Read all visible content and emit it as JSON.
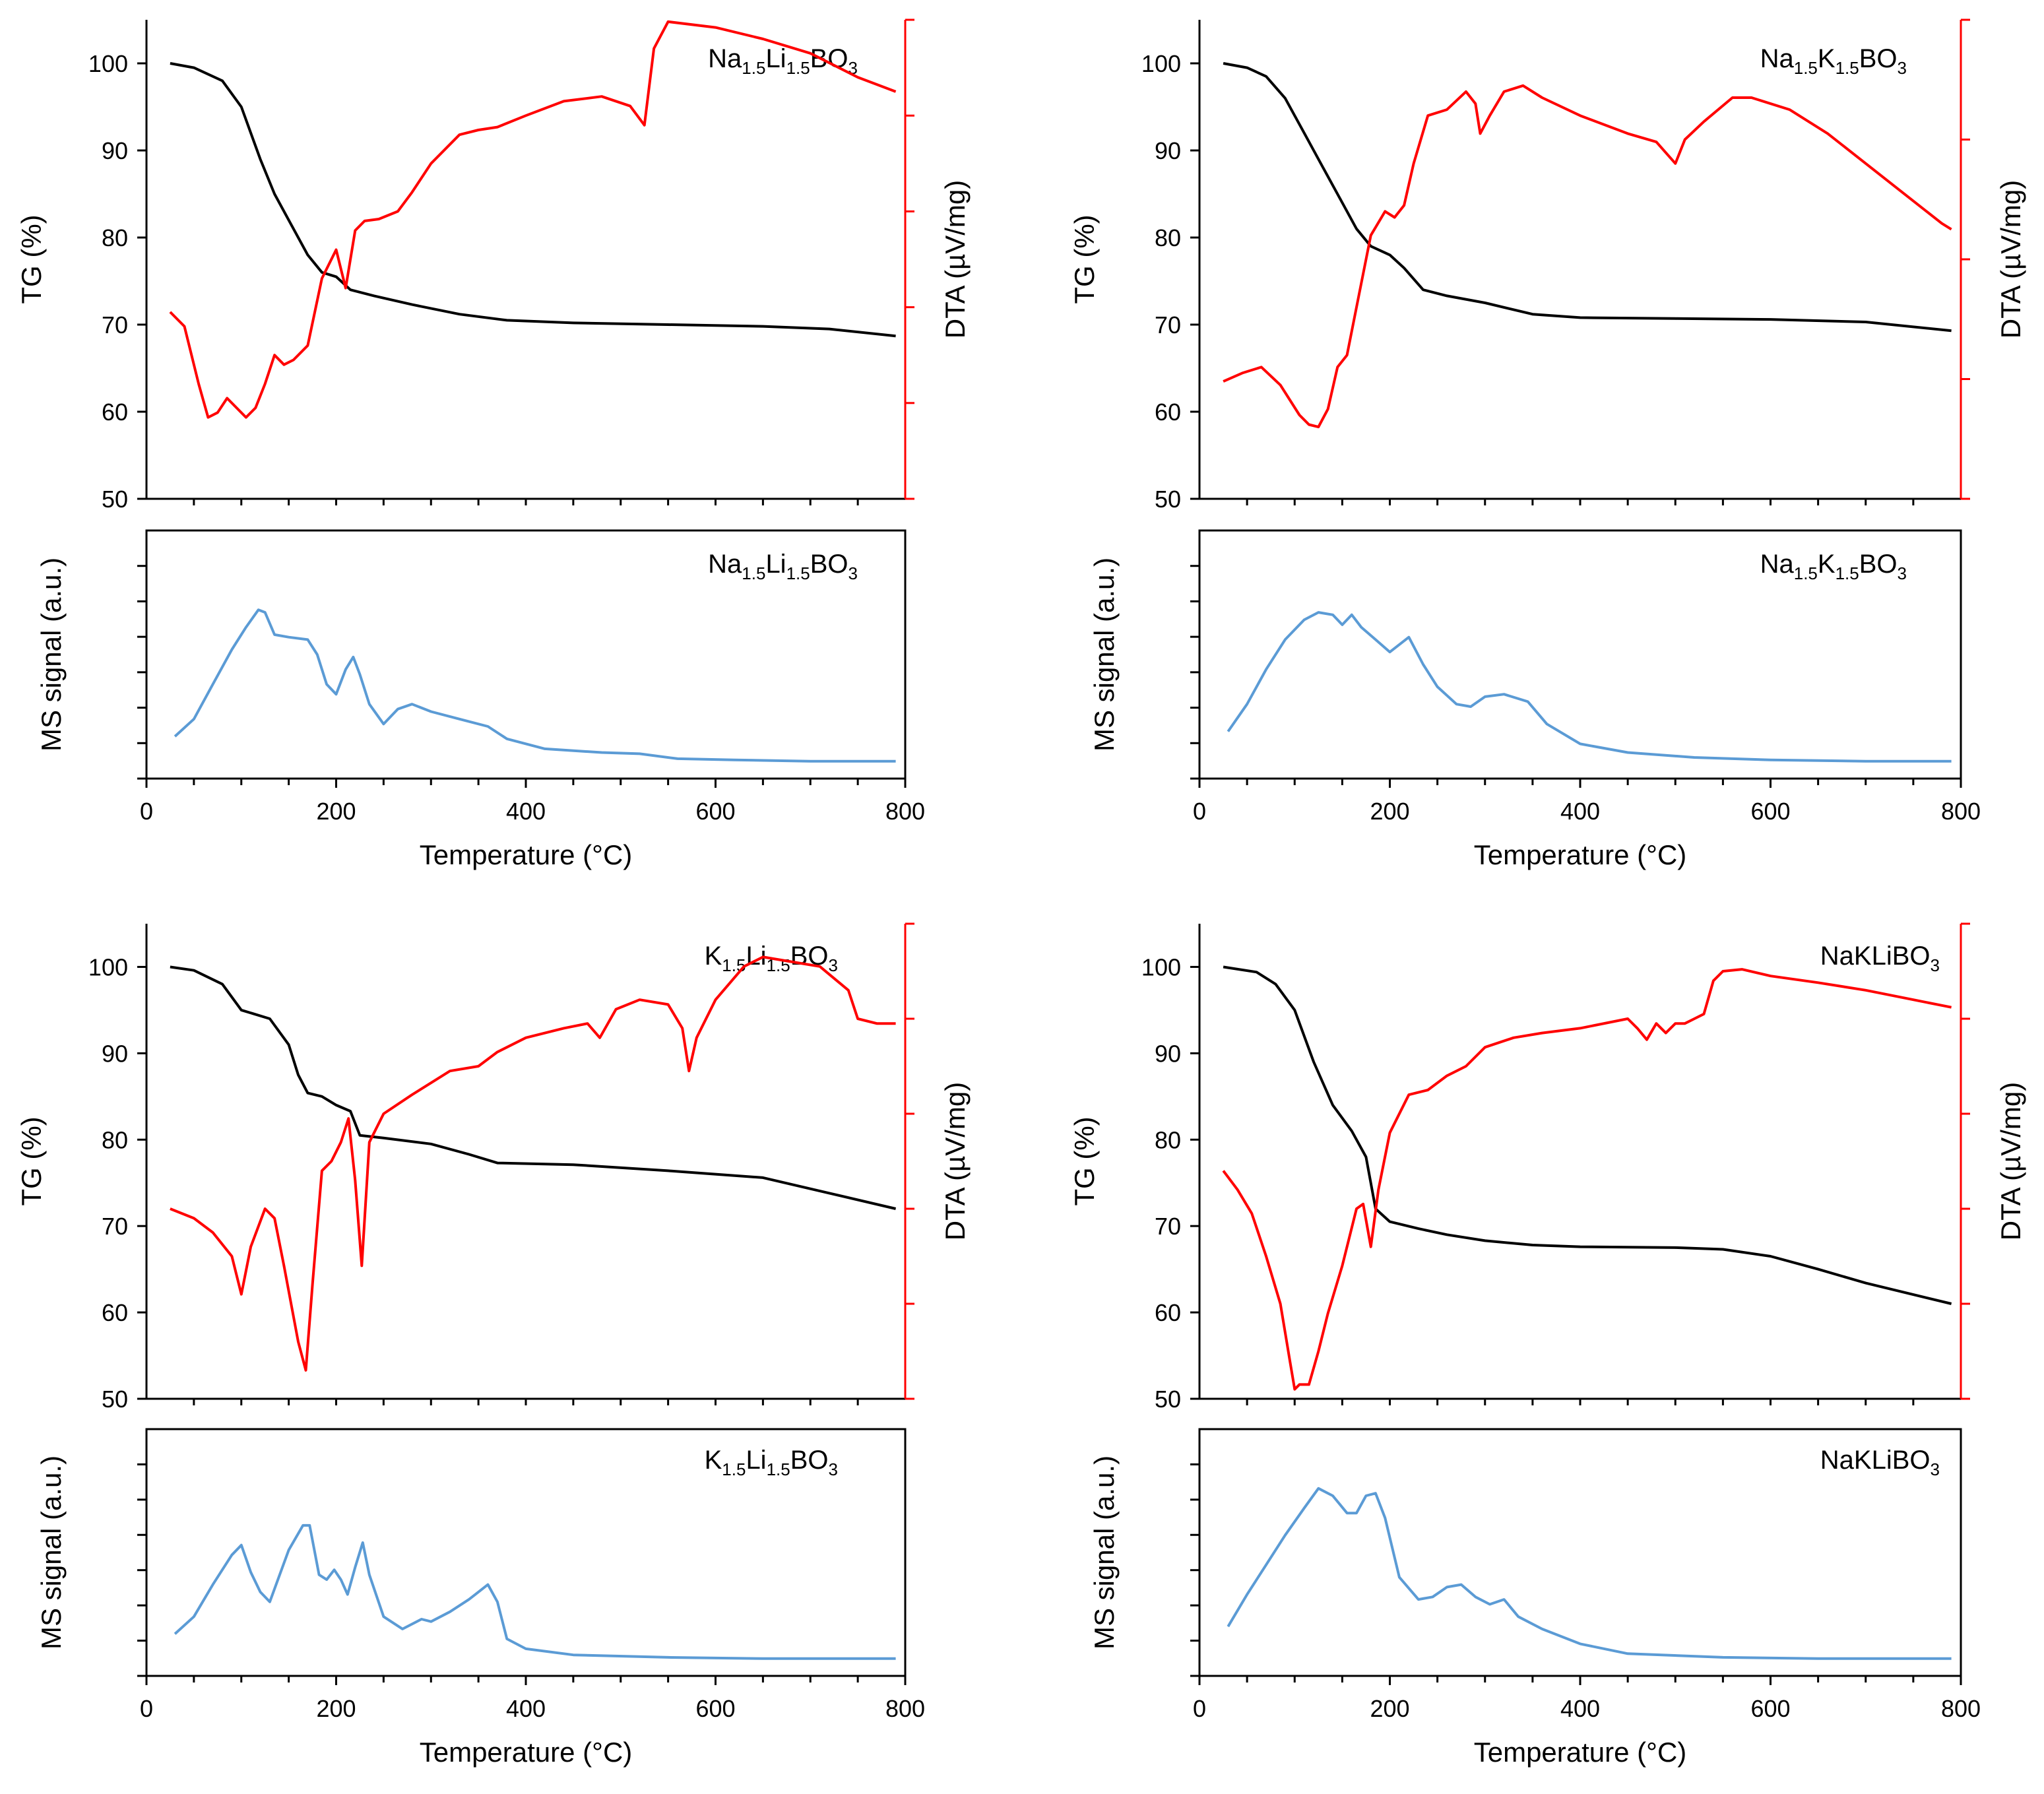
{
  "colors": {
    "tg": "#000000",
    "dta": "#ff0000",
    "ms": "#5b9bd5",
    "axis": "#000000",
    "dta_axis": "#ff0000"
  },
  "axis_labels": {
    "tg": "TG (%)",
    "dta": "DTA (µV/mg)",
    "ms": "MS signal (a.u.)",
    "x": "Temperature (°C)"
  },
  "chart_data": [
    {
      "type": "line",
      "sample": {
        "parts": [
          [
            "Na",
            ""
          ],
          [
            "1.5",
            "sub"
          ],
          [
            "Li",
            ""
          ],
          [
            "1.5",
            "sub"
          ],
          [
            "BO",
            ""
          ],
          [
            "3",
            "sub"
          ]
        ]
      },
      "xlim": [
        0,
        800
      ],
      "x_ticks": [
        "0",
        "200",
        "400",
        "600",
        "800"
      ],
      "tg": {
        "name": "TG",
        "ylabel": "TG (%)",
        "ylim": [
          50,
          105
        ],
        "y_ticks": [
          "50",
          "60",
          "70",
          "80",
          "90",
          "100"
        ],
        "x": [
          25,
          50,
          80,
          100,
          120,
          135,
          150,
          170,
          185,
          200,
          215,
          240,
          280,
          330,
          380,
          450,
          550,
          650,
          720,
          790
        ],
        "y": [
          100,
          99.5,
          98,
          95,
          89,
          85,
          82,
          78,
          76,
          75.5,
          74,
          73.3,
          72.3,
          71.2,
          70.5,
          70.2,
          70,
          69.8,
          69.5,
          68.7
        ]
      },
      "dta": {
        "name": "DTA",
        "ylabel": "DTA (µV/mg)",
        "ylim": [
          0,
          5
        ],
        "tick_count": 5,
        "x": [
          25,
          40,
          55,
          65,
          75,
          85,
          95,
          105,
          115,
          125,
          135,
          145,
          155,
          170,
          185,
          200,
          210,
          220,
          230,
          245,
          265,
          280,
          300,
          330,
          350,
          370,
          400,
          440,
          480,
          510,
          525,
          535,
          550,
          600,
          650,
          700,
          750,
          790
        ],
        "y": [
          1.95,
          1.8,
          1.2,
          0.85,
          0.9,
          1.05,
          0.95,
          0.85,
          0.95,
          1.2,
          1.5,
          1.4,
          1.45,
          1.6,
          2.3,
          2.6,
          2.2,
          2.8,
          2.9,
          2.92,
          3.0,
          3.2,
          3.5,
          3.8,
          3.85,
          3.88,
          4.0,
          4.15,
          4.2,
          4.1,
          3.9,
          4.7,
          4.98,
          4.92,
          4.8,
          4.65,
          4.4,
          4.25
        ]
      },
      "ms": {
        "name": "MS",
        "ylabel": "MS signal (a.u.)",
        "ylim": [
          0,
          100
        ],
        "tick_count": 6,
        "x": [
          30,
          50,
          70,
          90,
          105,
          118,
          125,
          135,
          150,
          170,
          180,
          190,
          200,
          210,
          218,
          225,
          235,
          250,
          265,
          280,
          300,
          330,
          360,
          380,
          420,
          480,
          520,
          560,
          620,
          700,
          790
        ],
        "y": [
          17,
          24,
          38,
          52,
          61,
          68,
          67,
          58,
          57,
          56,
          50,
          38,
          34,
          44,
          49,
          42,
          30,
          22,
          28,
          30,
          27,
          24,
          21,
          16,
          12,
          10.5,
          10,
          8,
          7.5,
          7,
          7
        ]
      }
    },
    {
      "type": "line",
      "sample": {
        "parts": [
          [
            "Na",
            ""
          ],
          [
            "1.5",
            "sub"
          ],
          [
            "K",
            ""
          ],
          [
            "1.5",
            "sub"
          ],
          [
            "BO",
            ""
          ],
          [
            "3",
            "sub"
          ]
        ]
      },
      "xlim": [
        0,
        800
      ],
      "x_ticks": [
        "0",
        "200",
        "400",
        "600",
        "800"
      ],
      "tg": {
        "name": "TG",
        "ylabel": "TG (%)",
        "ylim": [
          50,
          105
        ],
        "y_ticks": [
          "50",
          "60",
          "70",
          "80",
          "90",
          "100"
        ],
        "x": [
          25,
          50,
          70,
          90,
          110,
          130,
          150,
          165,
          180,
          200,
          215,
          235,
          260,
          300,
          350,
          400,
          500,
          600,
          700,
          790
        ],
        "y": [
          100,
          99.5,
          98.5,
          96,
          92,
          88,
          84,
          81,
          79,
          78,
          76.5,
          74,
          73.3,
          72.5,
          71.2,
          70.8,
          70.7,
          70.6,
          70.3,
          69.3
        ]
      },
      "dta": {
        "name": "DTA",
        "ylabel": "DTA (µV/mg)",
        "ylim": [
          0,
          4
        ],
        "tick_count": 4,
        "x": [
          25,
          45,
          65,
          85,
          105,
          115,
          125,
          135,
          145,
          155,
          165,
          180,
          195,
          205,
          215,
          225,
          240,
          260,
          280,
          290,
          295,
          305,
          320,
          340,
          360,
          400,
          450,
          480,
          500,
          510,
          530,
          560,
          580,
          620,
          660,
          700,
          740,
          780,
          790
        ],
        "y": [
          0.98,
          1.05,
          1.1,
          0.95,
          0.7,
          0.62,
          0.6,
          0.75,
          1.1,
          1.2,
          1.6,
          2.2,
          2.4,
          2.35,
          2.45,
          2.8,
          3.2,
          3.25,
          3.4,
          3.3,
          3.05,
          3.2,
          3.4,
          3.45,
          3.35,
          3.2,
          3.05,
          2.98,
          2.8,
          3.0,
          3.15,
          3.35,
          3.35,
          3.25,
          3.05,
          2.8,
          2.55,
          2.3,
          2.25
        ]
      },
      "ms": {
        "name": "MS",
        "ylabel": "MS signal (a.u.)",
        "ylim": [
          0,
          100
        ],
        "tick_count": 6,
        "x": [
          30,
          50,
          70,
          90,
          110,
          125,
          140,
          150,
          160,
          170,
          185,
          200,
          220,
          235,
          250,
          270,
          285,
          300,
          320,
          345,
          365,
          400,
          450,
          520,
          600,
          700,
          790
        ],
        "y": [
          19,
          30,
          44,
          56,
          64,
          67,
          66,
          62,
          66,
          61,
          56,
          51,
          57,
          46,
          37,
          30,
          29,
          33,
          34,
          31,
          22,
          14,
          10.5,
          8.5,
          7.5,
          7,
          7
        ]
      }
    },
    {
      "type": "line",
      "sample": {
        "parts": [
          [
            "K",
            ""
          ],
          [
            "1.5",
            "sub"
          ],
          [
            "Li",
            ""
          ],
          [
            "1.5",
            "sub"
          ],
          [
            "BO",
            ""
          ],
          [
            "3",
            "sub"
          ]
        ]
      },
      "xlim": [
        0,
        800
      ],
      "x_ticks": [
        "0",
        "200",
        "400",
        "600",
        "800"
      ],
      "tg": {
        "name": "TG",
        "ylabel": "TG (%)",
        "ylim": [
          50,
          105
        ],
        "y_ticks": [
          "50",
          "60",
          "70",
          "80",
          "90",
          "100"
        ],
        "x": [
          25,
          50,
          80,
          100,
          130,
          150,
          160,
          170,
          185,
          200,
          215,
          225,
          250,
          300,
          340,
          370,
          450,
          550,
          650,
          720,
          790
        ],
        "y": [
          100,
          99.6,
          98,
          95,
          94,
          91,
          87.5,
          85.4,
          85,
          84,
          83.3,
          80.5,
          80.2,
          79.5,
          78.3,
          77.3,
          77.1,
          76.4,
          75.6,
          73.8,
          72
        ]
      },
      "dta": {
        "name": "DTA",
        "ylabel": "DTA (µV/mg)",
        "ylim": [
          0,
          5
        ],
        "tick_count": 5,
        "x": [
          25,
          50,
          70,
          90,
          100,
          110,
          125,
          135,
          145,
          160,
          168,
          175,
          185,
          195,
          205,
          213,
          220,
          227,
          235,
          250,
          280,
          320,
          350,
          370,
          400,
          440,
          465,
          478,
          495,
          520,
          550,
          565,
          572,
          580,
          600,
          630,
          650,
          680,
          710,
          740,
          750,
          770,
          790
        ],
        "y": [
          2.0,
          1.9,
          1.75,
          1.5,
          1.1,
          1.6,
          2.0,
          1.9,
          1.4,
          0.6,
          0.3,
          1.2,
          2.4,
          2.5,
          2.7,
          2.95,
          2.3,
          1.4,
          2.7,
          3.0,
          3.2,
          3.45,
          3.5,
          3.65,
          3.8,
          3.9,
          3.95,
          3.8,
          4.1,
          4.2,
          4.15,
          3.9,
          3.45,
          3.8,
          4.2,
          4.55,
          4.65,
          4.6,
          4.55,
          4.3,
          4.0,
          3.95,
          3.95
        ]
      },
      "ms": {
        "name": "MS",
        "ylabel": "MS signal (a.u.)",
        "ylim": [
          0,
          100
        ],
        "tick_count": 6,
        "x": [
          30,
          50,
          70,
          90,
          100,
          110,
          120,
          130,
          150,
          165,
          172,
          182,
          190,
          198,
          205,
          212,
          220,
          228,
          235,
          250,
          270,
          290,
          300,
          320,
          340,
          360,
          370,
          380,
          400,
          450,
          550,
          650,
          790
        ],
        "y": [
          17,
          24,
          37,
          49,
          53,
          42,
          34,
          30,
          51,
          61,
          61,
          41,
          39,
          43,
          39,
          33,
          44,
          54,
          41,
          24,
          19,
          23,
          22,
          26,
          31,
          37,
          30,
          15,
          11,
          8.5,
          7.5,
          7,
          7
        ]
      }
    },
    {
      "type": "line",
      "sample": {
        "parts": [
          [
            "NaKLiBO",
            ""
          ],
          [
            "3",
            "sub"
          ]
        ]
      },
      "xlim": [
        0,
        800
      ],
      "x_ticks": [
        "0",
        "200",
        "400",
        "600",
        "800"
      ],
      "tg": {
        "name": "TG",
        "ylabel": "TG (%)",
        "ylim": [
          50,
          105
        ],
        "y_ticks": [
          "50",
          "60",
          "70",
          "80",
          "90",
          "100"
        ],
        "x": [
          25,
          60,
          80,
          100,
          120,
          140,
          160,
          175,
          185,
          200,
          230,
          260,
          300,
          350,
          400,
          500,
          550,
          600,
          650,
          700,
          790
        ],
        "y": [
          100,
          99.4,
          98,
          95,
          89,
          84,
          81,
          78,
          72,
          70.5,
          69.7,
          69,
          68.3,
          67.8,
          67.6,
          67.5,
          67.3,
          66.5,
          65,
          63.4,
          61
        ]
      },
      "dta": {
        "name": "DTA",
        "ylabel": "DTA (µV/mg)",
        "ylim": [
          0,
          5
        ],
        "tick_count": 5,
        "x": [
          25,
          40,
          55,
          70,
          85,
          95,
          100,
          105,
          115,
          125,
          135,
          150,
          165,
          172,
          180,
          188,
          200,
          220,
          240,
          260,
          280,
          300,
          330,
          360,
          400,
          450,
          460,
          470,
          480,
          490,
          500,
          510,
          520,
          530,
          540,
          550,
          570,
          600,
          650,
          700,
          750,
          790
        ],
        "y": [
          2.4,
          2.2,
          1.95,
          1.5,
          1.0,
          0.4,
          0.1,
          0.15,
          0.15,
          0.5,
          0.9,
          1.4,
          2.0,
          2.05,
          1.6,
          2.2,
          2.8,
          3.2,
          3.25,
          3.4,
          3.5,
          3.7,
          3.8,
          3.85,
          3.9,
          4.0,
          3.9,
          3.78,
          3.95,
          3.85,
          3.95,
          3.95,
          4.0,
          4.05,
          4.4,
          4.5,
          4.52,
          4.45,
          4.38,
          4.3,
          4.2,
          4.12
        ]
      },
      "ms": {
        "name": "MS",
        "ylabel": "MS signal (a.u.)",
        "ylim": [
          0,
          100
        ],
        "tick_count": 6,
        "x": [
          30,
          50,
          70,
          90,
          110,
          125,
          140,
          155,
          165,
          175,
          185,
          195,
          210,
          230,
          245,
          260,
          275,
          290,
          305,
          320,
          335,
          360,
          400,
          450,
          550,
          650,
          790
        ],
        "y": [
          20,
          33,
          45,
          57,
          68,
          76,
          73,
          66,
          66,
          73,
          74,
          64,
          40,
          31,
          32,
          36,
          37,
          32,
          29,
          31,
          24,
          19,
          13,
          9,
          7.5,
          7,
          7
        ]
      }
    }
  ]
}
